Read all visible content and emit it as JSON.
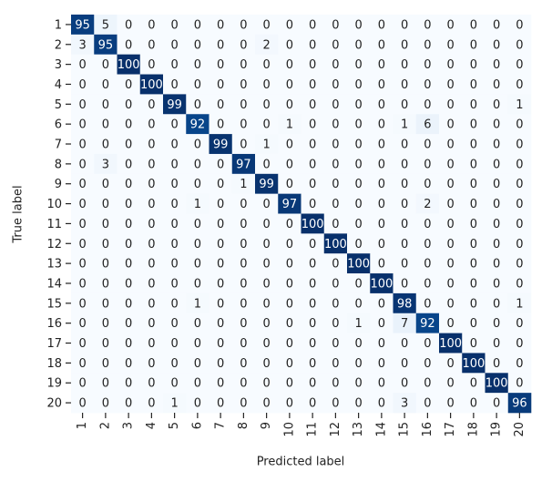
{
  "chart_data": {
    "type": "heatmap",
    "xlabel": "Predicted label",
    "ylabel": "True label",
    "x_categories": [
      1,
      2,
      3,
      4,
      5,
      6,
      7,
      8,
      9,
      10,
      11,
      12,
      13,
      14,
      15,
      16,
      17,
      18,
      19,
      20
    ],
    "y_categories": [
      1,
      2,
      3,
      4,
      5,
      6,
      7,
      8,
      9,
      10,
      11,
      12,
      13,
      14,
      15,
      16,
      17,
      18,
      19,
      20
    ],
    "vlim": [
      0,
      100
    ],
    "colormap": [
      "#f7fbff",
      "#deebf7",
      "#c6dbef",
      "#9ecae1",
      "#6baed6",
      "#4292c6",
      "#2171b5",
      "#08519c",
      "#08306b"
    ],
    "values": [
      [
        95,
        5,
        0,
        0,
        0,
        0,
        0,
        0,
        0,
        0,
        0,
        0,
        0,
        0,
        0,
        0,
        0,
        0,
        0,
        0
      ],
      [
        3,
        95,
        0,
        0,
        0,
        0,
        0,
        0,
        2,
        0,
        0,
        0,
        0,
        0,
        0,
        0,
        0,
        0,
        0,
        0
      ],
      [
        0,
        0,
        100,
        0,
        0,
        0,
        0,
        0,
        0,
        0,
        0,
        0,
        0,
        0,
        0,
        0,
        0,
        0,
        0,
        0
      ],
      [
        0,
        0,
        0,
        100,
        0,
        0,
        0,
        0,
        0,
        0,
        0,
        0,
        0,
        0,
        0,
        0,
        0,
        0,
        0,
        0
      ],
      [
        0,
        0,
        0,
        0,
        99,
        0,
        0,
        0,
        0,
        0,
        0,
        0,
        0,
        0,
        0,
        0,
        0,
        0,
        0,
        1
      ],
      [
        0,
        0,
        0,
        0,
        0,
        92,
        0,
        0,
        0,
        1,
        0,
        0,
        0,
        0,
        1,
        6,
        0,
        0,
        0,
        0
      ],
      [
        0,
        0,
        0,
        0,
        0,
        0,
        99,
        0,
        1,
        0,
        0,
        0,
        0,
        0,
        0,
        0,
        0,
        0,
        0,
        0
      ],
      [
        0,
        3,
        0,
        0,
        0,
        0,
        0,
        97,
        0,
        0,
        0,
        0,
        0,
        0,
        0,
        0,
        0,
        0,
        0,
        0
      ],
      [
        0,
        0,
        0,
        0,
        0,
        0,
        0,
        1,
        99,
        0,
        0,
        0,
        0,
        0,
        0,
        0,
        0,
        0,
        0,
        0
      ],
      [
        0,
        0,
        0,
        0,
        0,
        1,
        0,
        0,
        0,
        97,
        0,
        0,
        0,
        0,
        0,
        2,
        0,
        0,
        0,
        0
      ],
      [
        0,
        0,
        0,
        0,
        0,
        0,
        0,
        0,
        0,
        0,
        100,
        0,
        0,
        0,
        0,
        0,
        0,
        0,
        0,
        0
      ],
      [
        0,
        0,
        0,
        0,
        0,
        0,
        0,
        0,
        0,
        0,
        0,
        100,
        0,
        0,
        0,
        0,
        0,
        0,
        0,
        0
      ],
      [
        0,
        0,
        0,
        0,
        0,
        0,
        0,
        0,
        0,
        0,
        0,
        0,
        100,
        0,
        0,
        0,
        0,
        0,
        0,
        0
      ],
      [
        0,
        0,
        0,
        0,
        0,
        0,
        0,
        0,
        0,
        0,
        0,
        0,
        0,
        100,
        0,
        0,
        0,
        0,
        0,
        0
      ],
      [
        0,
        0,
        0,
        0,
        0,
        1,
        0,
        0,
        0,
        0,
        0,
        0,
        0,
        0,
        98,
        0,
        0,
        0,
        0,
        1
      ],
      [
        0,
        0,
        0,
        0,
        0,
        0,
        0,
        0,
        0,
        0,
        0,
        0,
        1,
        0,
        7,
        92,
        0,
        0,
        0,
        0
      ],
      [
        0,
        0,
        0,
        0,
        0,
        0,
        0,
        0,
        0,
        0,
        0,
        0,
        0,
        0,
        0,
        0,
        100,
        0,
        0,
        0
      ],
      [
        0,
        0,
        0,
        0,
        0,
        0,
        0,
        0,
        0,
        0,
        0,
        0,
        0,
        0,
        0,
        0,
        0,
        100,
        0,
        0
      ],
      [
        0,
        0,
        0,
        0,
        0,
        0,
        0,
        0,
        0,
        0,
        0,
        0,
        0,
        0,
        0,
        0,
        0,
        0,
        100,
        0
      ],
      [
        0,
        0,
        0,
        0,
        1,
        0,
        0,
        0,
        0,
        0,
        0,
        0,
        0,
        0,
        3,
        0,
        0,
        0,
        0,
        96
      ]
    ]
  }
}
